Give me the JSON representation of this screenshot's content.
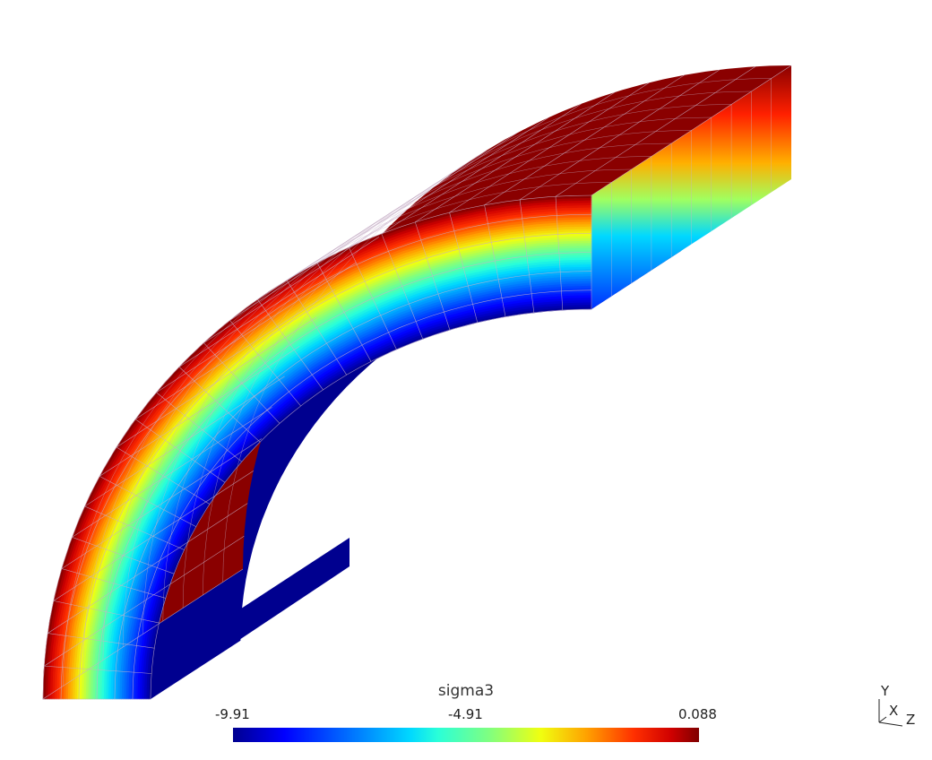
{
  "colorbar": {
    "title": "sigma3",
    "min_label": "-9.91",
    "mid_label": "-4.91",
    "max_label": "0.088",
    "colormap": "jet",
    "colors": [
      "#00008f",
      "#0000ff",
      "#00d8ff",
      "#80ff80",
      "#f0ff10",
      "#ff3000",
      "#7f0000"
    ]
  },
  "axes_triad": {
    "y": "Y",
    "x": "X",
    "z": "Z"
  }
}
